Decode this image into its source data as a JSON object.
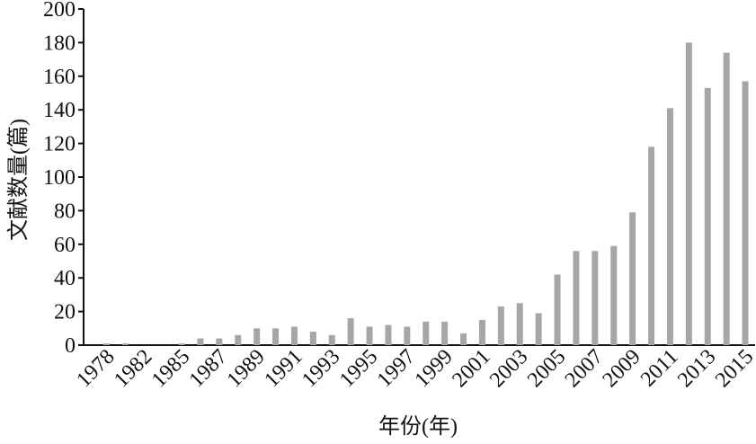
{
  "chart_data": {
    "type": "bar",
    "y_axis_label": "文献数量(篇)",
    "x_axis_label": "年份(年)",
    "categories": [
      "1978",
      null,
      "1982",
      null,
      "1985",
      null,
      "1987",
      null,
      "1989",
      null,
      "1991",
      null,
      "1993",
      null,
      "1995",
      null,
      "1997",
      null,
      "1999",
      null,
      "2001",
      null,
      "2003",
      null,
      "2005",
      null,
      "2007",
      null,
      "2009",
      null,
      "2011",
      null,
      "2013",
      null,
      "2015"
    ],
    "values": [
      1,
      1,
      0,
      0,
      1,
      4,
      4,
      6,
      10,
      10,
      11,
      8,
      6,
      16,
      11,
      12,
      11,
      14,
      14,
      7,
      15,
      23,
      25,
      19,
      42,
      56,
      56,
      59,
      79,
      118,
      141,
      180,
      153,
      174,
      157
    ],
    "color": "#a6a6a6",
    "ylim": [
      0,
      200
    ],
    "yticks": [
      0,
      20,
      40,
      60,
      80,
      100,
      120,
      140,
      160,
      180,
      200
    ]
  }
}
